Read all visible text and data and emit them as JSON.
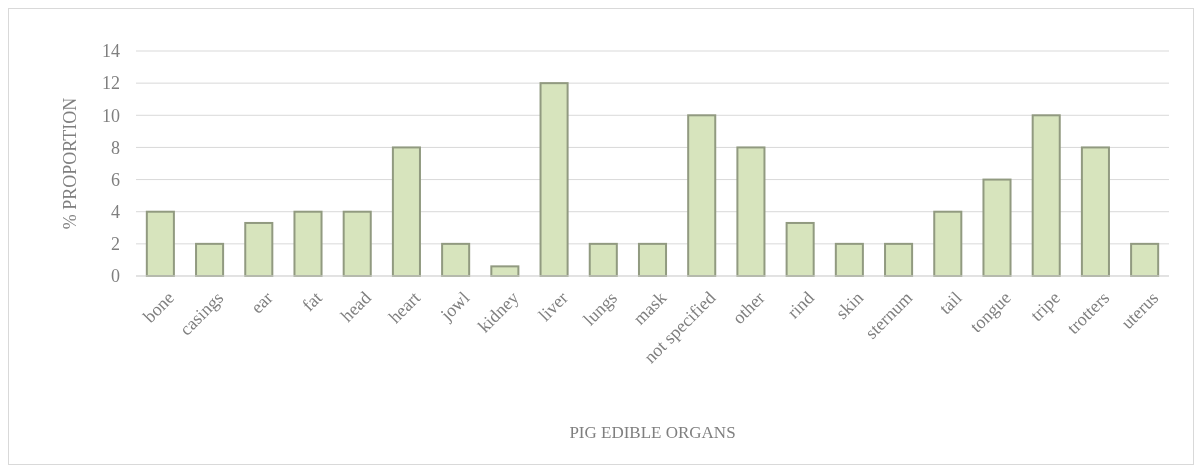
{
  "chart_data": {
    "type": "bar",
    "xlabel": "PIG  EDIBLE ORGANS",
    "ylabel": "% PROPORTION",
    "categories": [
      "bone",
      "casings",
      "ear",
      "fat",
      "head",
      "heart",
      "jowl",
      "kidney",
      "liver",
      "lungs",
      "mask",
      "not specified",
      "other",
      "rind",
      "skin",
      "sternum",
      "tail",
      "tongue",
      "tripe",
      "trotters",
      "uterus"
    ],
    "values": [
      4,
      2,
      3.3,
      4,
      4,
      8,
      2,
      0.6,
      12,
      2,
      2,
      10,
      8,
      3.3,
      2,
      2,
      4,
      6,
      10,
      8,
      2
    ],
    "color": "#d7e4bd",
    "ylim": [
      0,
      14
    ],
    "yticks": [
      0,
      2,
      4,
      6,
      8,
      10,
      12,
      14
    ],
    "grid": "y"
  }
}
